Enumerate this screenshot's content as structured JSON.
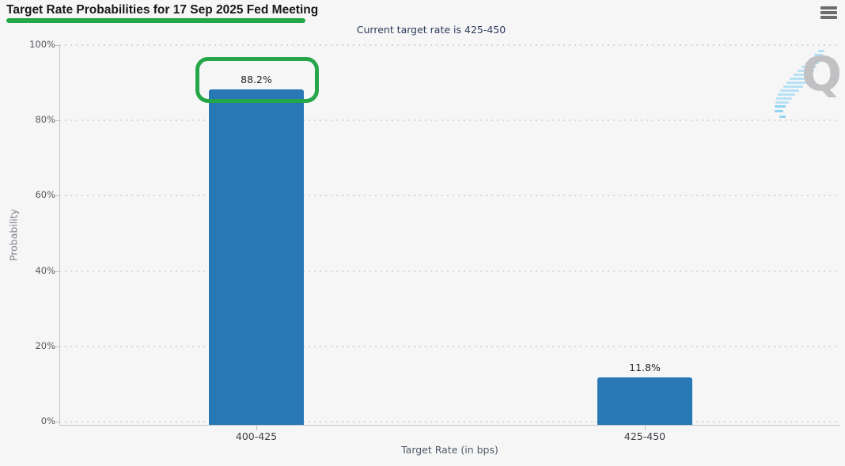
{
  "header": {
    "title": "Target Rate Probabilities for 17 Sep 2025 Fed Meeting",
    "menu_icon": "hamburger-icon"
  },
  "subtitle": "Current target rate is 425-450",
  "chart_data": {
    "type": "bar",
    "title": "Target Rate Probabilities for 17 Sep 2025 Fed Meeting",
    "subtitle": "Current target rate is 425-450",
    "categories": [
      "400-425",
      "425-450"
    ],
    "values": [
      88.2,
      11.8
    ],
    "value_labels": [
      "88.2%",
      "11.8%"
    ],
    "xlabel": "Target Rate (in bps)",
    "ylabel": "Probability",
    "ylim": [
      0,
      100
    ],
    "ytick_labels": [
      "0%",
      "20%",
      "40%",
      "60%",
      "80%",
      "100%"
    ],
    "grid": "horizontal dotted",
    "legend": "none",
    "bar_color": "#2878b5"
  },
  "annotations": {
    "title_underline_color": "#25a749",
    "highlight_box_color": "#25a749",
    "highlighted_value": "88.2%"
  },
  "watermark": {
    "letter": "Q",
    "stripe_color": "#b7e2f5"
  }
}
